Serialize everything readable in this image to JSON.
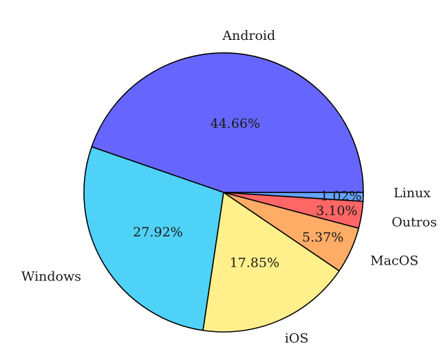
{
  "chart_data": {
    "type": "pie",
    "title": "",
    "slices": [
      {
        "name": "Android",
        "value": 44.66,
        "label": "44.66%",
        "color": "#6666ff"
      },
      {
        "name": "Windows",
        "value": 27.92,
        "label": "27.92%",
        "color": "#4fd2f7"
      },
      {
        "name": "iOS",
        "value": 17.85,
        "label": "17.85%",
        "color": "#fff08c"
      },
      {
        "name": "MacOS",
        "value": 5.37,
        "label": "5.37%",
        "color": "#ffad66"
      },
      {
        "name": "Outros",
        "value": 3.1,
        "label": "3.10%",
        "color": "#ff6666"
      },
      {
        "name": "Linux",
        "value": 1.02,
        "label": "1.02%",
        "color": "#66a3ff"
      }
    ],
    "start_angle_deg": 0,
    "direction": "counterclockwise"
  }
}
